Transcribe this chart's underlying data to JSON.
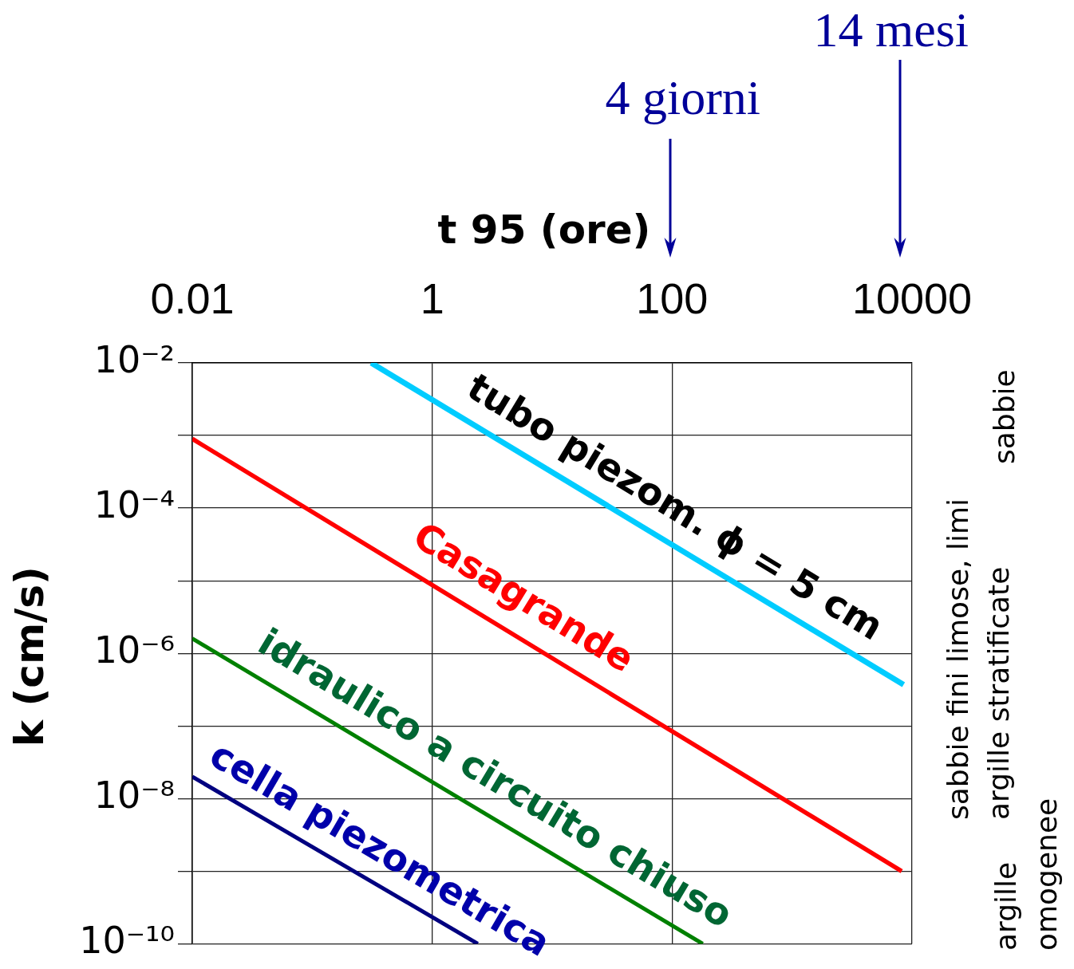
{
  "chart_data": {
    "type": "line",
    "xlabel": "t 95 (ore)",
    "ylabel": "k (cm/s)",
    "series": [
      {
        "name": "tubo piezom. ϕ = 5 cm",
        "color": "#00ccff",
        "x": [
          0.31,
          8500
        ],
        "values": [
          0.01,
          3.7e-07
        ]
      },
      {
        "name": "Casagrande",
        "color": "#ff0000",
        "x": [
          0.01,
          8200
        ],
        "values": [
          0.0009,
          1e-09
        ]
      },
      {
        "name": "idraulico a circuito chiuso",
        "color": "#008000",
        "x": [
          0.01,
          180
        ],
        "values": [
          1.6e-06,
          1e-10
        ]
      },
      {
        "name": "cella piezometrica",
        "color": "#000080",
        "x": [
          0.01,
          2.4
        ],
        "values": [
          2e-08,
          1e-10
        ]
      }
    ],
    "xlim": [
      0.01,
      10000
    ],
    "ylim": [
      1e-10,
      0.01
    ],
    "xticks": [
      0.01,
      1,
      100,
      10000
    ],
    "yticks": [
      {
        "value": 0.01,
        "label": "10⁻²"
      },
      {
        "value": 0.001,
        "label": null
      },
      {
        "value": 0.0001,
        "label": "10⁻⁴"
      },
      {
        "value": 1e-05,
        "label": null
      },
      {
        "value": 1e-06,
        "label": "10⁻⁶"
      },
      {
        "value": 1e-07,
        "label": null
      },
      {
        "value": 1e-08,
        "label": "10⁻⁸"
      },
      {
        "value": 1e-09,
        "label": null
      },
      {
        "value": 1e-10,
        "label": "10⁻¹⁰"
      }
    ],
    "log": "xy",
    "grid": true,
    "legend": false,
    "annotations": [
      "4 giorni",
      "14 mesi",
      "sabbie",
      "sabbie fini limose, limi argille stratificate",
      "argille omogenee"
    ]
  }
}
